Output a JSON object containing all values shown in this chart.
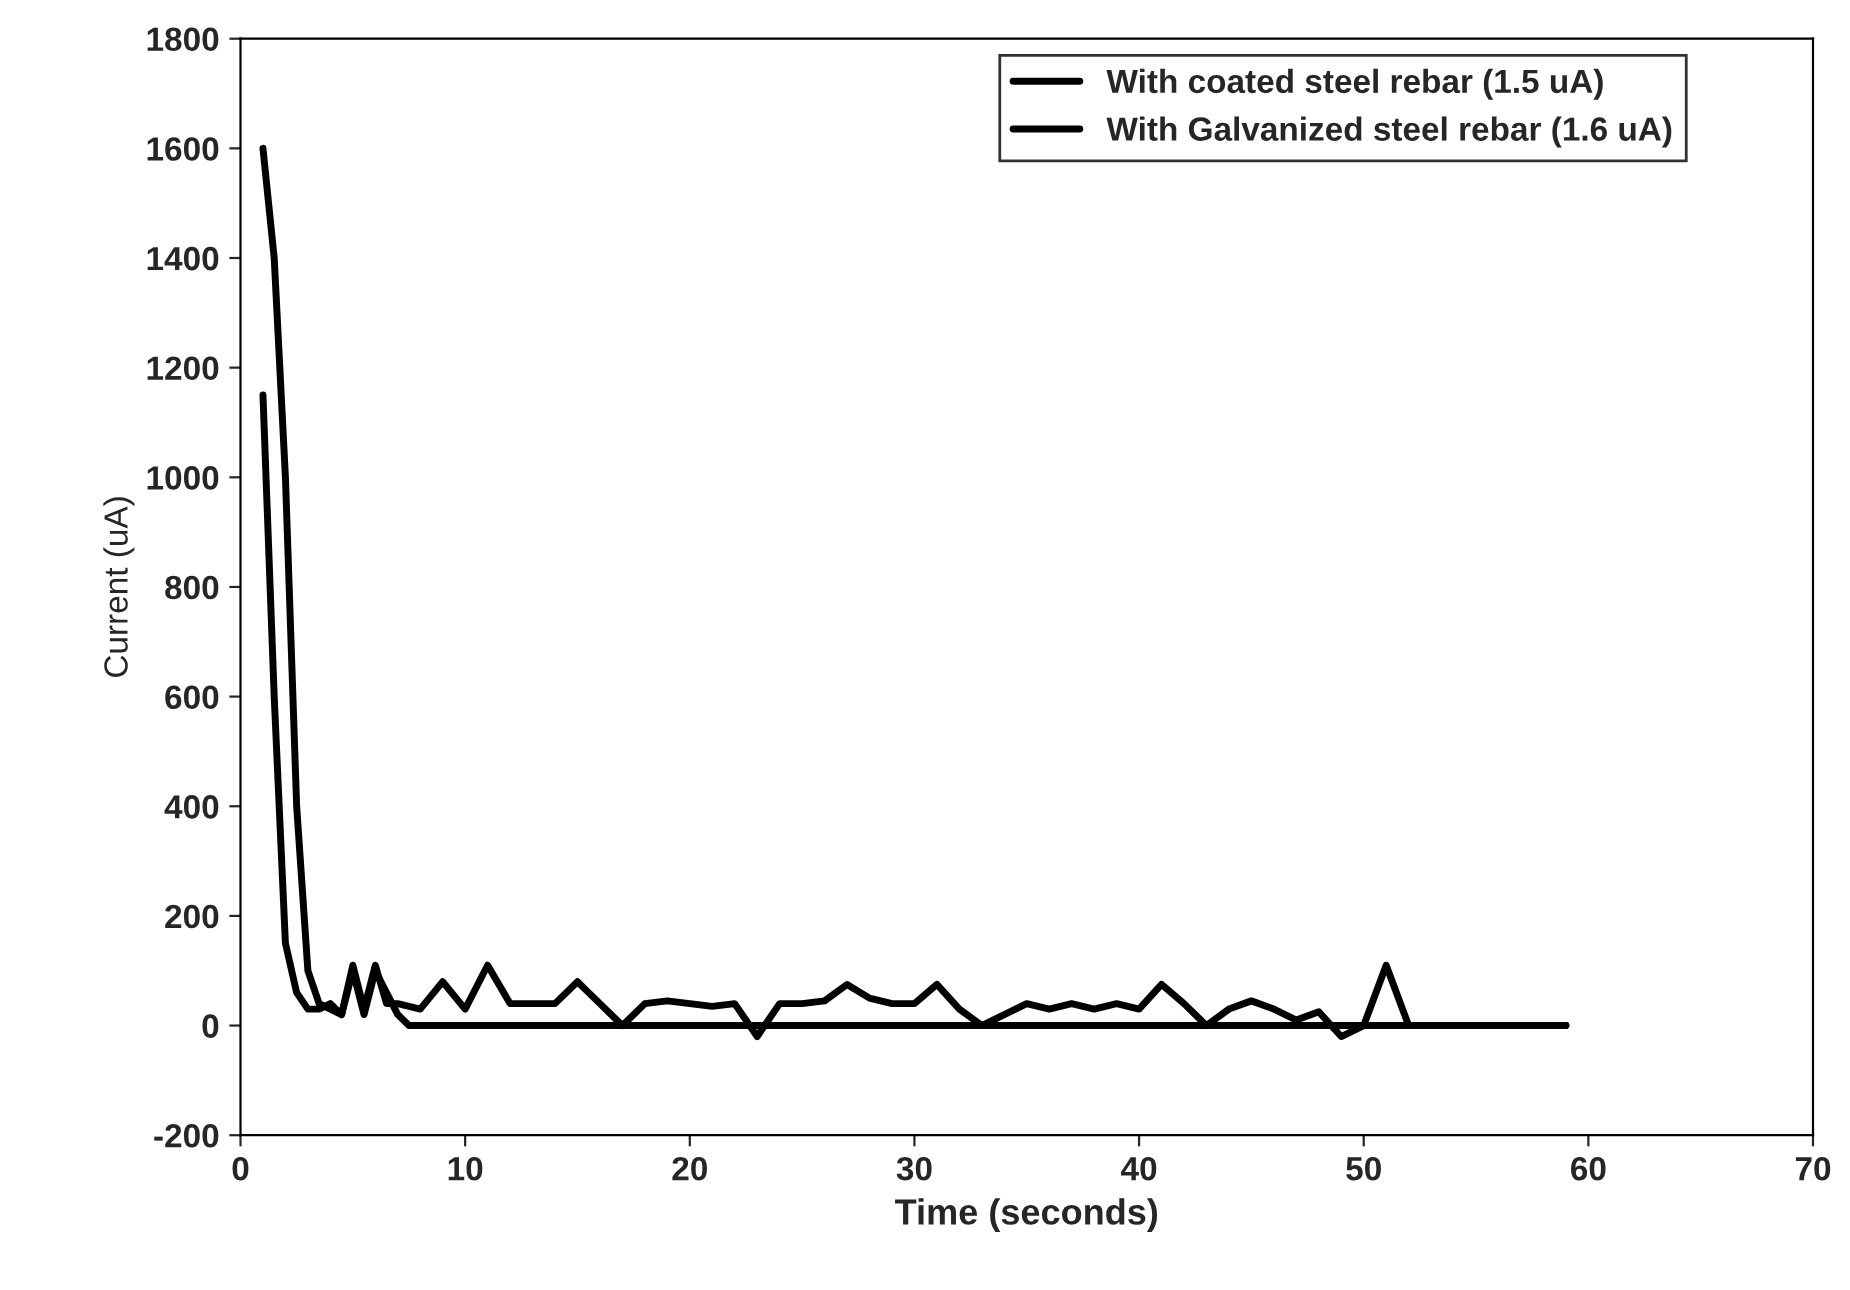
{
  "chart_data": {
    "type": "line",
    "xlabel": "Time (seconds)",
    "ylabel": "Current (uA)",
    "xlim": [
      0,
      70
    ],
    "xticks": [
      0,
      10,
      20,
      30,
      40,
      50,
      60,
      70
    ],
    "ylim": [
      -200,
      1800
    ],
    "yticks": [
      -200,
      0,
      200,
      400,
      600,
      800,
      1000,
      1200,
      1400,
      1600,
      1800
    ],
    "grid": false,
    "legend": "top right",
    "marker": "none",
    "line_style": "solid",
    "series": [
      {
        "name": "With coated steel rebar (1.5 uA)",
        "color": "#000000",
        "x": [
          1,
          1.5,
          2,
          2.5,
          3,
          3.5,
          4,
          4.5,
          5,
          5.5,
          6,
          6.5,
          7,
          7.5,
          59
        ],
        "values": [
          1150,
          600,
          150,
          60,
          30,
          30,
          40,
          20,
          100,
          20,
          100,
          60,
          20,
          0,
          0
        ]
      },
      {
        "name": "With Galvanized steel rebar (1.6 uA)",
        "color": "#000000",
        "x": [
          1,
          1.5,
          2,
          2.5,
          3,
          3.5,
          4,
          4.5,
          5,
          5.5,
          6,
          6.5,
          7,
          8,
          9,
          10,
          11,
          12,
          13,
          14,
          15,
          16,
          17,
          18,
          19,
          20,
          21,
          22,
          23,
          24,
          25,
          26,
          27,
          28,
          29,
          30,
          31,
          32,
          33,
          34,
          35,
          36,
          37,
          38,
          39,
          40,
          41,
          42,
          43,
          44,
          45,
          46,
          47,
          48,
          49,
          50,
          51,
          52,
          59
        ],
        "values": [
          1600,
          1400,
          1000,
          400,
          100,
          40,
          30,
          20,
          110,
          30,
          110,
          40,
          40,
          30,
          80,
          30,
          110,
          40,
          40,
          40,
          80,
          40,
          0,
          40,
          45,
          40,
          35,
          40,
          -20,
          40,
          40,
          45,
          75,
          50,
          40,
          40,
          75,
          30,
          0,
          20,
          40,
          30,
          40,
          30,
          40,
          30,
          75,
          40,
          0,
          30,
          45,
          30,
          10,
          25,
          -20,
          0,
          110,
          0,
          0
        ]
      }
    ]
  }
}
